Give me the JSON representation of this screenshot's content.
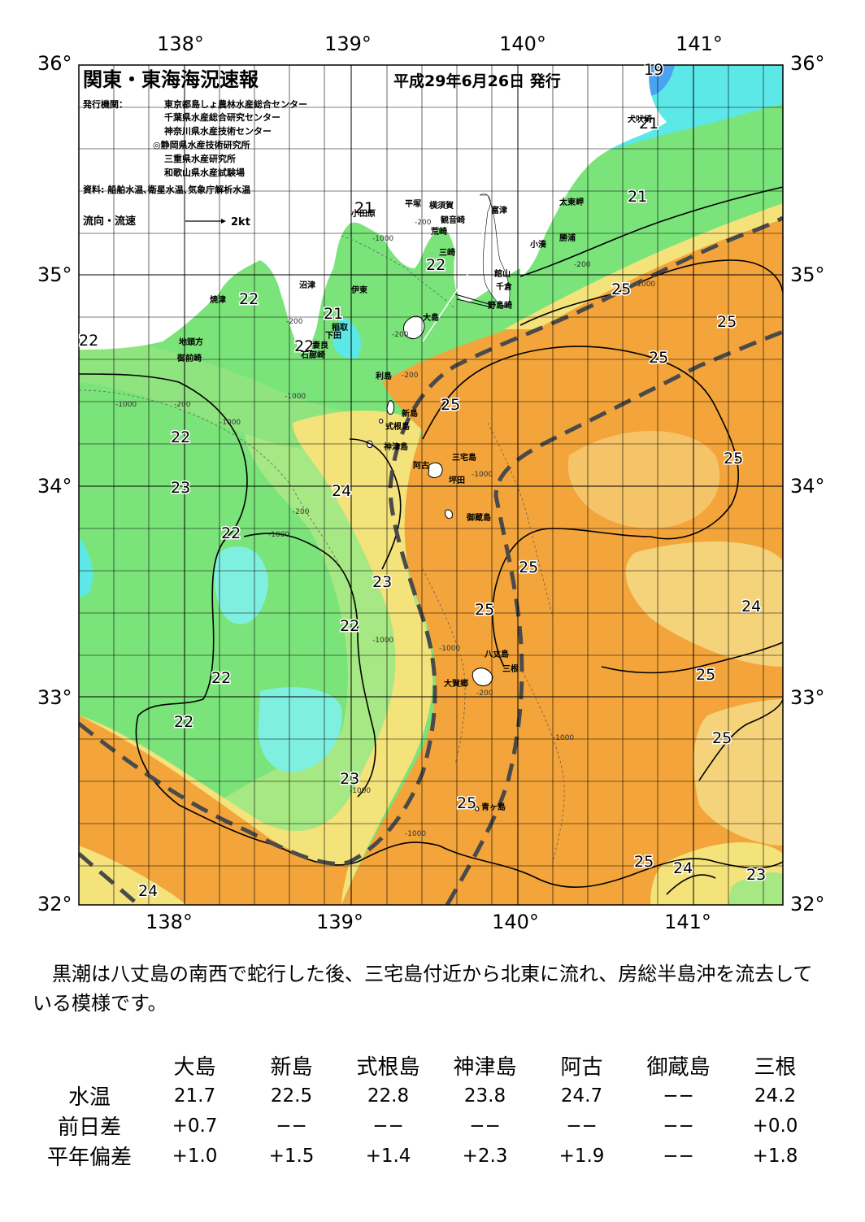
{
  "map": {
    "title": "関東・東海海況速報",
    "issue_date": "平成29年6月26日 発行",
    "publisher_label": "発行機関：",
    "publishers": [
      "東京都島しょ農林水産総合センター",
      "千葉県水産総合研究センター",
      "神奈川県水産技術センター",
      "◎静岡県水産技術研究所",
      "三重県水産研究所",
      "和歌山県水産試験場"
    ],
    "sources": "資料: 船舶水温､衛星水温､気象庁解析水温",
    "current_legend": "流向・流速",
    "current_scale": "2kt",
    "lon_labels": [
      "138°",
      "139°",
      "140°",
      "141°"
    ],
    "lat_labels": [
      "36°",
      "35°",
      "34°",
      "33°",
      "32°"
    ],
    "colors": {
      "land": "#ffffff",
      "temp_19_20": "#4aa3ee",
      "temp_21": "#5de8e8",
      "temp_22": "#7ae37a",
      "temp_23": "#a6e883",
      "temp_24": "#f4e27a",
      "temp_25": "#f3a43a",
      "temp_25_core": "#ef9a2a",
      "kuroshio_axis": "#4a4a4a",
      "contour": "#000000"
    },
    "isotherm_labels": [
      "19",
      "21",
      "21",
      "21",
      "21",
      "22",
      "22",
      "22",
      "22",
      "22",
      "22",
      "22",
      "22",
      "22",
      "23",
      "23",
      "23",
      "23",
      "24",
      "24",
      "24",
      "25",
      "25",
      "25",
      "25",
      "25",
      "25",
      "25",
      "25",
      "25",
      "25",
      "25",
      "25"
    ],
    "depth_labels": [
      "-200",
      "-1000"
    ],
    "place_names": [
      "犬吠埼",
      "太東岬",
      "勝浦",
      "小湊",
      "富津",
      "館山",
      "千倉",
      "野島崎",
      "横須賀",
      "観音崎",
      "平塚",
      "小田原",
      "荒崎",
      "三崎",
      "大島",
      "稲取",
      "下田",
      "伊東",
      "沼津",
      "焼津",
      "地頭方",
      "御前崎",
      "石廊崎",
      "妻良",
      "利島",
      "新島",
      "式根島",
      "神津島",
      "三宅島",
      "阿古",
      "坪田",
      "御蔵島",
      "八丈島",
      "三根",
      "大賀郷",
      "青ヶ島"
    ]
  },
  "summary": "黒潮は八丈島の南西で蛇行した後、三宅島付近から北東に流れ、房総半島沖を流去している模様です。",
  "table": {
    "stations": [
      "大島",
      "新島",
      "式根島",
      "神津島",
      "阿古",
      "御蔵島",
      "三根"
    ],
    "rows": [
      {
        "label": "水温",
        "values": [
          "21.7",
          "22.5",
          "22.8",
          "23.8",
          "24.7",
          "−−",
          "24.2"
        ]
      },
      {
        "label": "前日差",
        "values": [
          "+0.7",
          "−−",
          "−−",
          "−−",
          "−−",
          "−−",
          "+0.0"
        ]
      },
      {
        "label": "平年偏差",
        "values": [
          "+1.0",
          "+1.5",
          "+1.4",
          "+2.3",
          "+1.9",
          "−−",
          "+1.8"
        ]
      }
    ]
  }
}
